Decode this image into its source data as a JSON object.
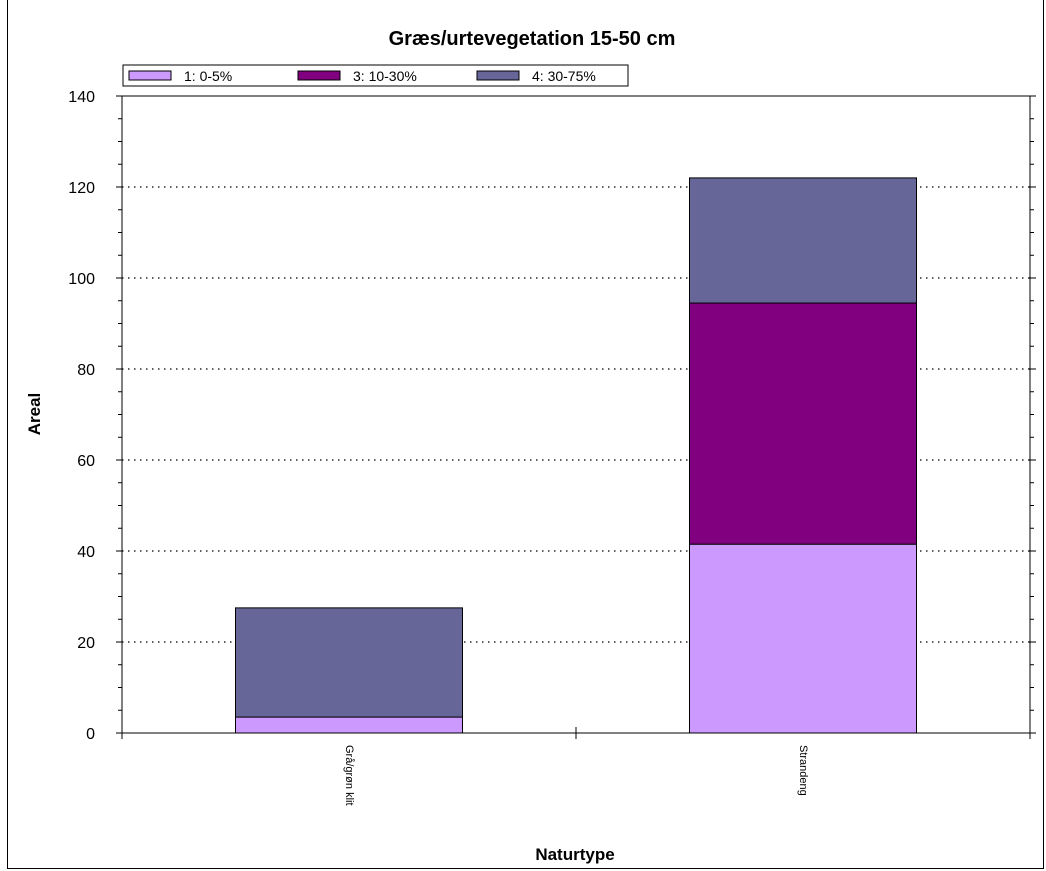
{
  "chart_data": {
    "type": "bar",
    "stacked": true,
    "title": "Græs/urtevegetation 15-50 cm",
    "xlabel": "Naturtype",
    "ylabel": "Areal",
    "categories": [
      "Grå/grøn klit",
      "Strandeng"
    ],
    "ylim": [
      0,
      140
    ],
    "yticks": [
      0,
      20,
      40,
      60,
      80,
      100,
      120,
      140
    ],
    "grid": "horizontal dotted",
    "legend_position": "top-left",
    "series": [
      {
        "name": "1: 0-5%",
        "color": "#cc99ff",
        "values": [
          3.5,
          41.5
        ]
      },
      {
        "name": "3: 10-30%",
        "color": "#800080",
        "values": [
          0,
          53
        ]
      },
      {
        "name": "4: 30-75%",
        "color": "#666699",
        "values": [
          24,
          27.5
        ]
      }
    ]
  }
}
